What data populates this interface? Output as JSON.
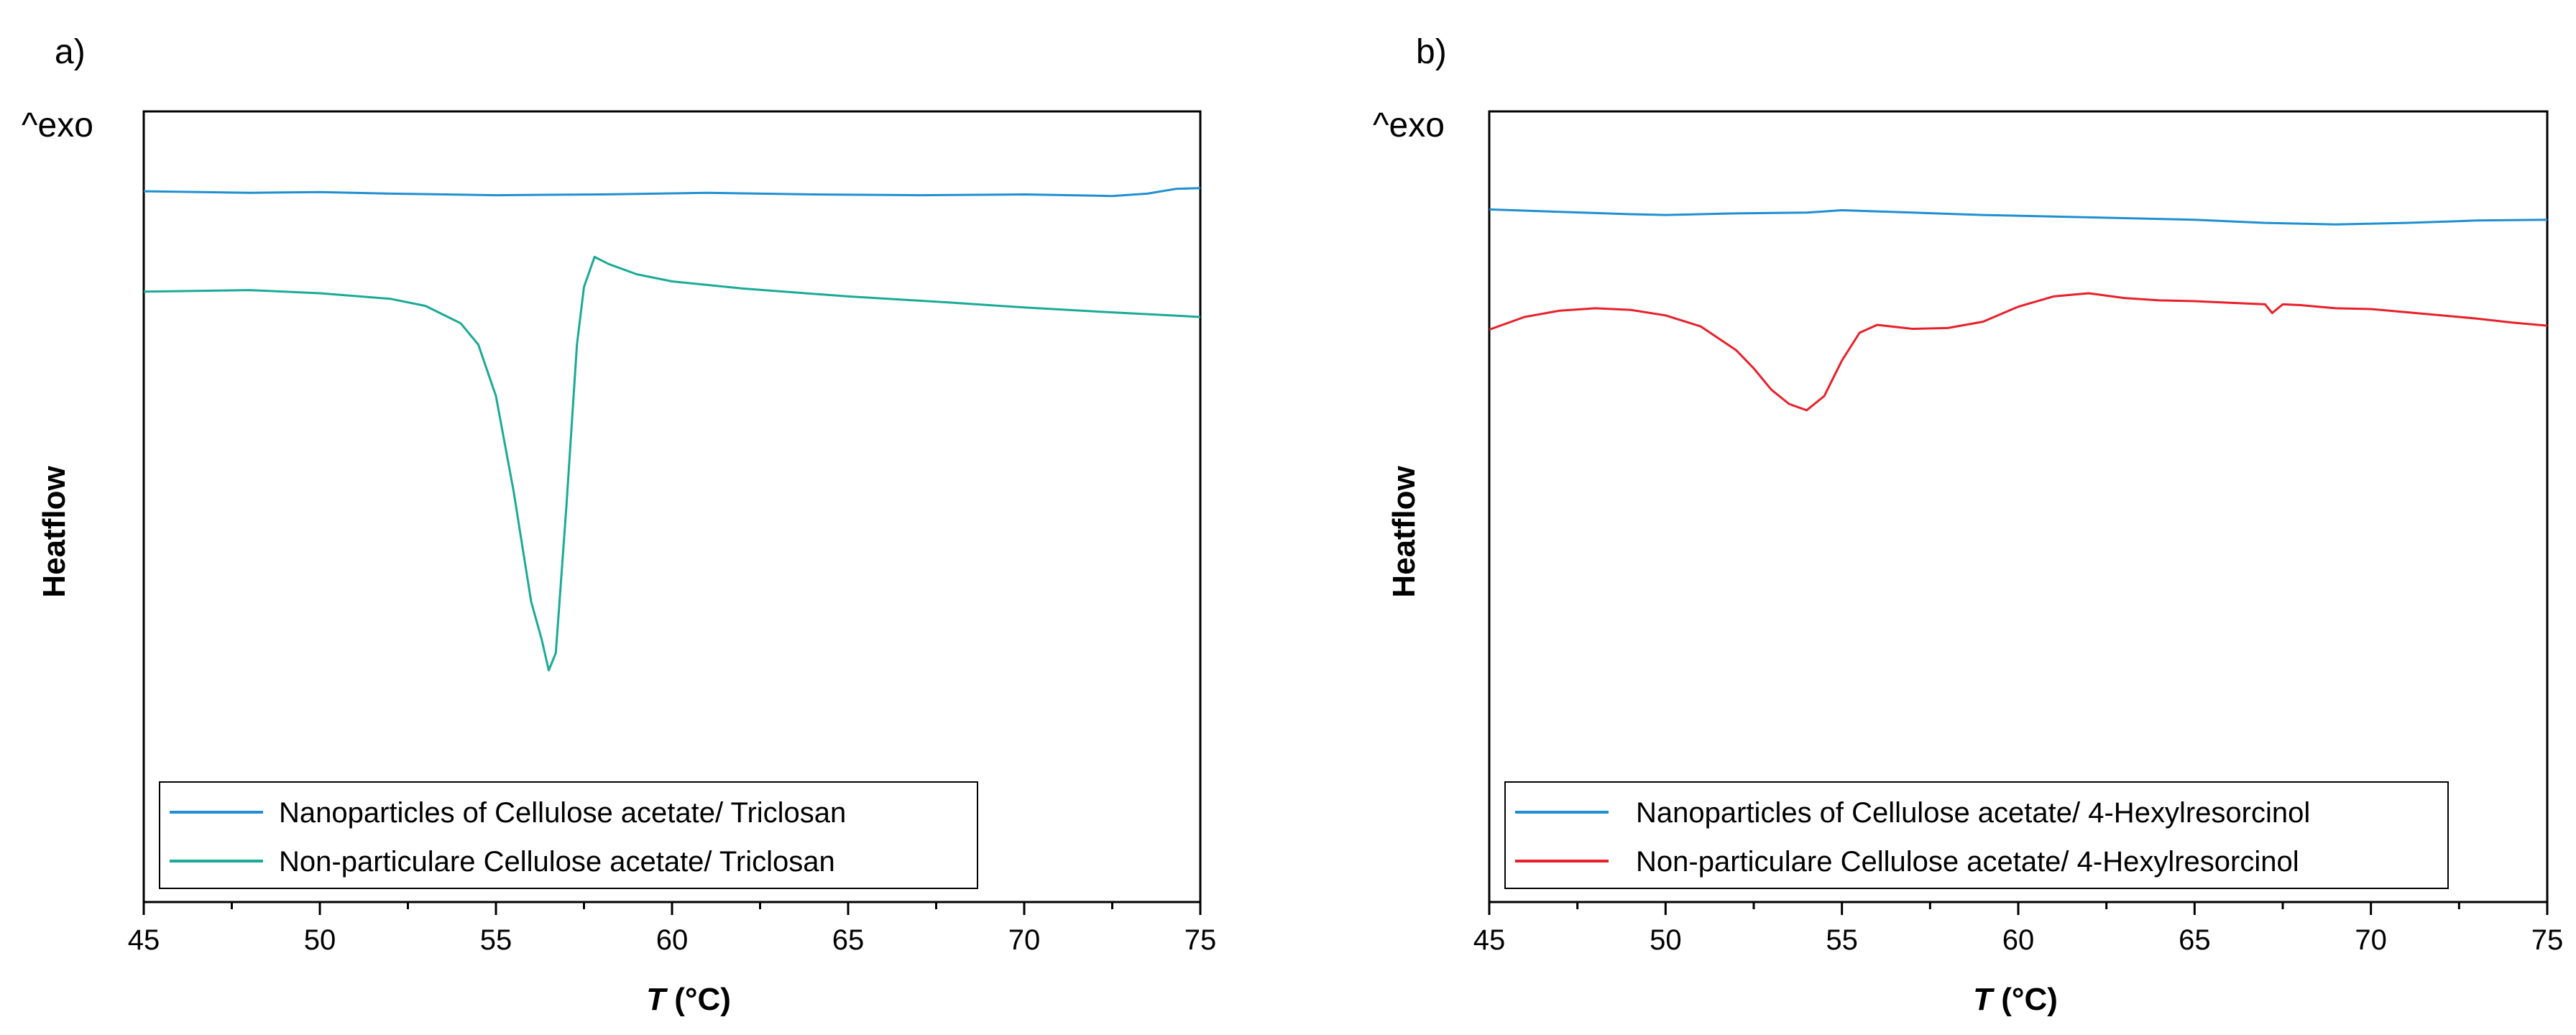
{
  "chart_data": [
    {
      "type": "line",
      "panel_label": "a)",
      "exo_label": "^exo",
      "xlabel_italic": "T",
      "xlabel_unit": " (°C)",
      "ylabel": "Heatflow",
      "xlim": [
        45,
        75
      ],
      "ylim": [
        0,
        100
      ],
      "xticks": [
        "45",
        "50",
        "55",
        "60",
        "65",
        "70",
        "75"
      ],
      "legend_position": "bottom-left",
      "series": [
        {
          "name": "Nanoparticles of Cellulose acetate/ Triclosan",
          "color": "#1f8fd0",
          "x": [
            45,
            48,
            50,
            52,
            55,
            58,
            61,
            64,
            67,
            70,
            72.5,
            73.5,
            74.3,
            75
          ],
          "y": [
            89.9,
            89.7,
            89.8,
            89.6,
            89.4,
            89.5,
            89.7,
            89.5,
            89.4,
            89.5,
            89.3,
            89.6,
            90.2,
            90.3
          ]
        },
        {
          "name": "Non-particulare Cellulose acetate/ Triclosan",
          "color": "#1aaa96",
          "x": [
            45,
            48,
            50,
            52,
            53,
            54,
            54.5,
            55,
            55.5,
            56,
            56.3,
            56.5,
            56.7,
            57,
            57.3,
            57.5,
            57.8,
            58.2,
            59,
            60,
            62,
            65,
            68,
            70,
            72,
            75
          ],
          "y": [
            77.2,
            77.4,
            77.0,
            76.3,
            75.4,
            73.2,
            70.5,
            64,
            52,
            38,
            33.2,
            29.3,
            31.5,
            50,
            70.5,
            77.8,
            81.6,
            80.7,
            79.4,
            78.5,
            77.6,
            76.6,
            75.8,
            75.2,
            74.7,
            74.0
          ]
        }
      ]
    },
    {
      "type": "line",
      "panel_label": "b)",
      "exo_label": "^exo",
      "xlabel_italic": "T",
      "xlabel_unit": " (°C)",
      "ylabel": "Heatflow",
      "xlim": [
        45,
        75
      ],
      "ylim": [
        0,
        100
      ],
      "xticks": [
        "45",
        "50",
        "55",
        "60",
        "65",
        "70",
        "75"
      ],
      "legend_position": "bottom-left",
      "series": [
        {
          "name": "Nanoparticles of Cellulose acetate/ 4-Hexylresorcinol",
          "color": "#1f8fd0",
          "x": [
            45,
            47,
            49,
            50,
            52,
            54,
            55,
            57,
            59,
            61,
            63,
            65,
            67,
            69,
            71,
            73,
            75
          ],
          "y": [
            87.6,
            87.3,
            87.0,
            86.9,
            87.1,
            87.2,
            87.5,
            87.2,
            86.9,
            86.7,
            86.5,
            86.3,
            85.9,
            85.7,
            85.9,
            86.2,
            86.3
          ]
        },
        {
          "name": "Non-particulare Cellulose acetate/ 4-Hexylresorcinol",
          "color": "#e8202a",
          "x": [
            45,
            46,
            47,
            48,
            49,
            50,
            51,
            52,
            52.5,
            53,
            53.5,
            54,
            54.5,
            55,
            55.5,
            56,
            57,
            58,
            59,
            60,
            61,
            62,
            63,
            64,
            65,
            66,
            67,
            67.2,
            67.5,
            68,
            69,
            70,
            71,
            72,
            73,
            74,
            75
          ],
          "y": [
            72.4,
            74.0,
            74.8,
            75.1,
            74.9,
            74.2,
            72.8,
            69.8,
            67.5,
            64.8,
            63.0,
            62.2,
            64.0,
            68.5,
            72.0,
            73.0,
            72.5,
            72.6,
            73.4,
            75.3,
            76.6,
            77.0,
            76.4,
            76.1,
            76.0,
            75.8,
            75.6,
            74.5,
            75.6,
            75.5,
            75.1,
            75.0,
            74.6,
            74.2,
            73.8,
            73.3,
            72.9
          ]
        }
      ]
    }
  ]
}
